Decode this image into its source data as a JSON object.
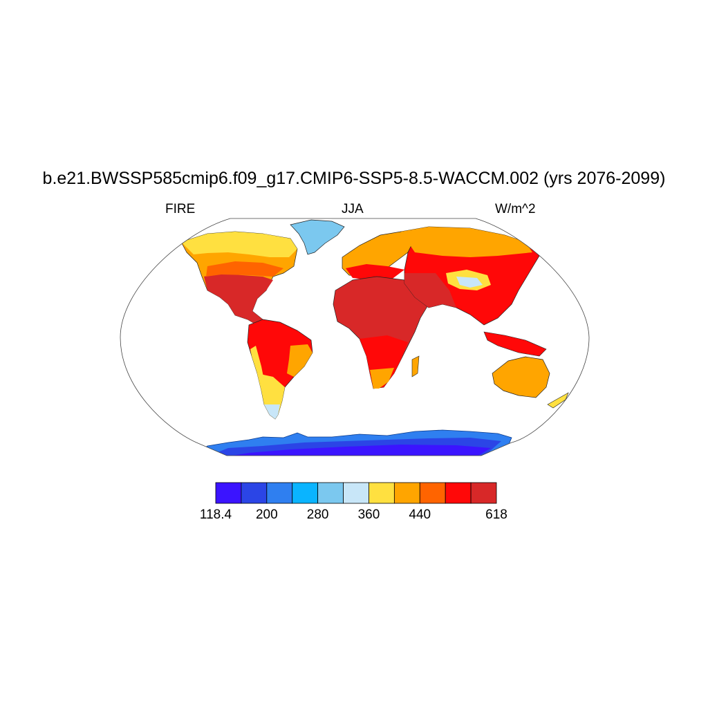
{
  "title": "b.e21.BWSSP585cmip6.f09_g17.CMIP6-SSP5-8.5-WACCM.002 (yrs 2076-2099)",
  "left_label": "FIRE",
  "center_label": "JJA",
  "right_label": "W/m^2",
  "colorbar": {
    "colors": [
      "#3b14ff",
      "#2b45e6",
      "#2f7ff0",
      "#0ab4ff",
      "#7bc8ef",
      "#c8e6f8",
      "#ffe040",
      "#ffa500",
      "#ff6400",
      "#ff0808",
      "#d82828"
    ],
    "labels": [
      "118.4",
      "200",
      "280",
      "360",
      "440",
      "618"
    ]
  },
  "map": {
    "projection": "Robinson",
    "variable": "FIRE",
    "season": "JJA",
    "units": "W/m^2"
  }
}
